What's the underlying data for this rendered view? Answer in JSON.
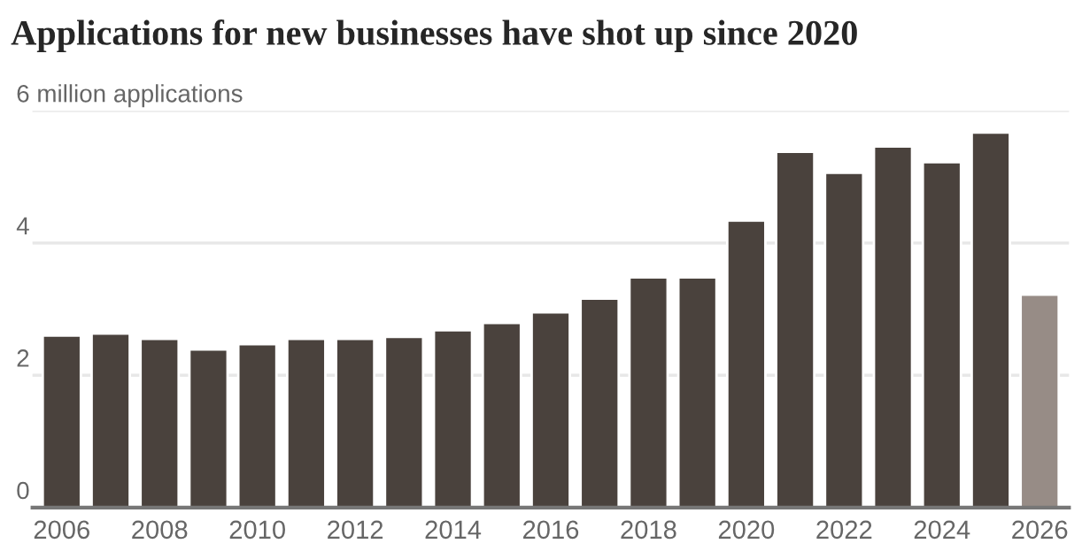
{
  "chart_data": {
    "type": "bar",
    "title": "Applications for new businesses have shot up since 2020",
    "categories": [
      "2006",
      null,
      "2008",
      null,
      "2010",
      null,
      "2012",
      null,
      "2014",
      null,
      "2016",
      null,
      "2018",
      null,
      "2020",
      null,
      "2022",
      null,
      "2024",
      null,
      "2026"
    ],
    "values": [
      2.6,
      2.63,
      2.55,
      2.39,
      2.47,
      2.55,
      2.55,
      2.58,
      2.68,
      2.79,
      2.95,
      3.16,
      3.48,
      3.48,
      4.34,
      5.38,
      5.06,
      5.46,
      5.22,
      5.67,
      3.22
    ],
    "colors": [
      "#4a423d",
      "#4a423d",
      "#4a423d",
      "#4a423d",
      "#4a423d",
      "#4a423d",
      "#4a423d",
      "#4a423d",
      "#4a423d",
      "#4a423d",
      "#4a423d",
      "#4a423d",
      "#4a423d",
      "#4a423d",
      "#4a423d",
      "#4a423d",
      "#4a423d",
      "#4a423d",
      "#4a423d",
      "#4a423d",
      "#978c86"
    ],
    "ylim": [
      0,
      6
    ],
    "yticks": [
      0,
      2,
      4,
      {
        "value": 6,
        "label": "6 million applications"
      }
    ],
    "grid": "y"
  }
}
